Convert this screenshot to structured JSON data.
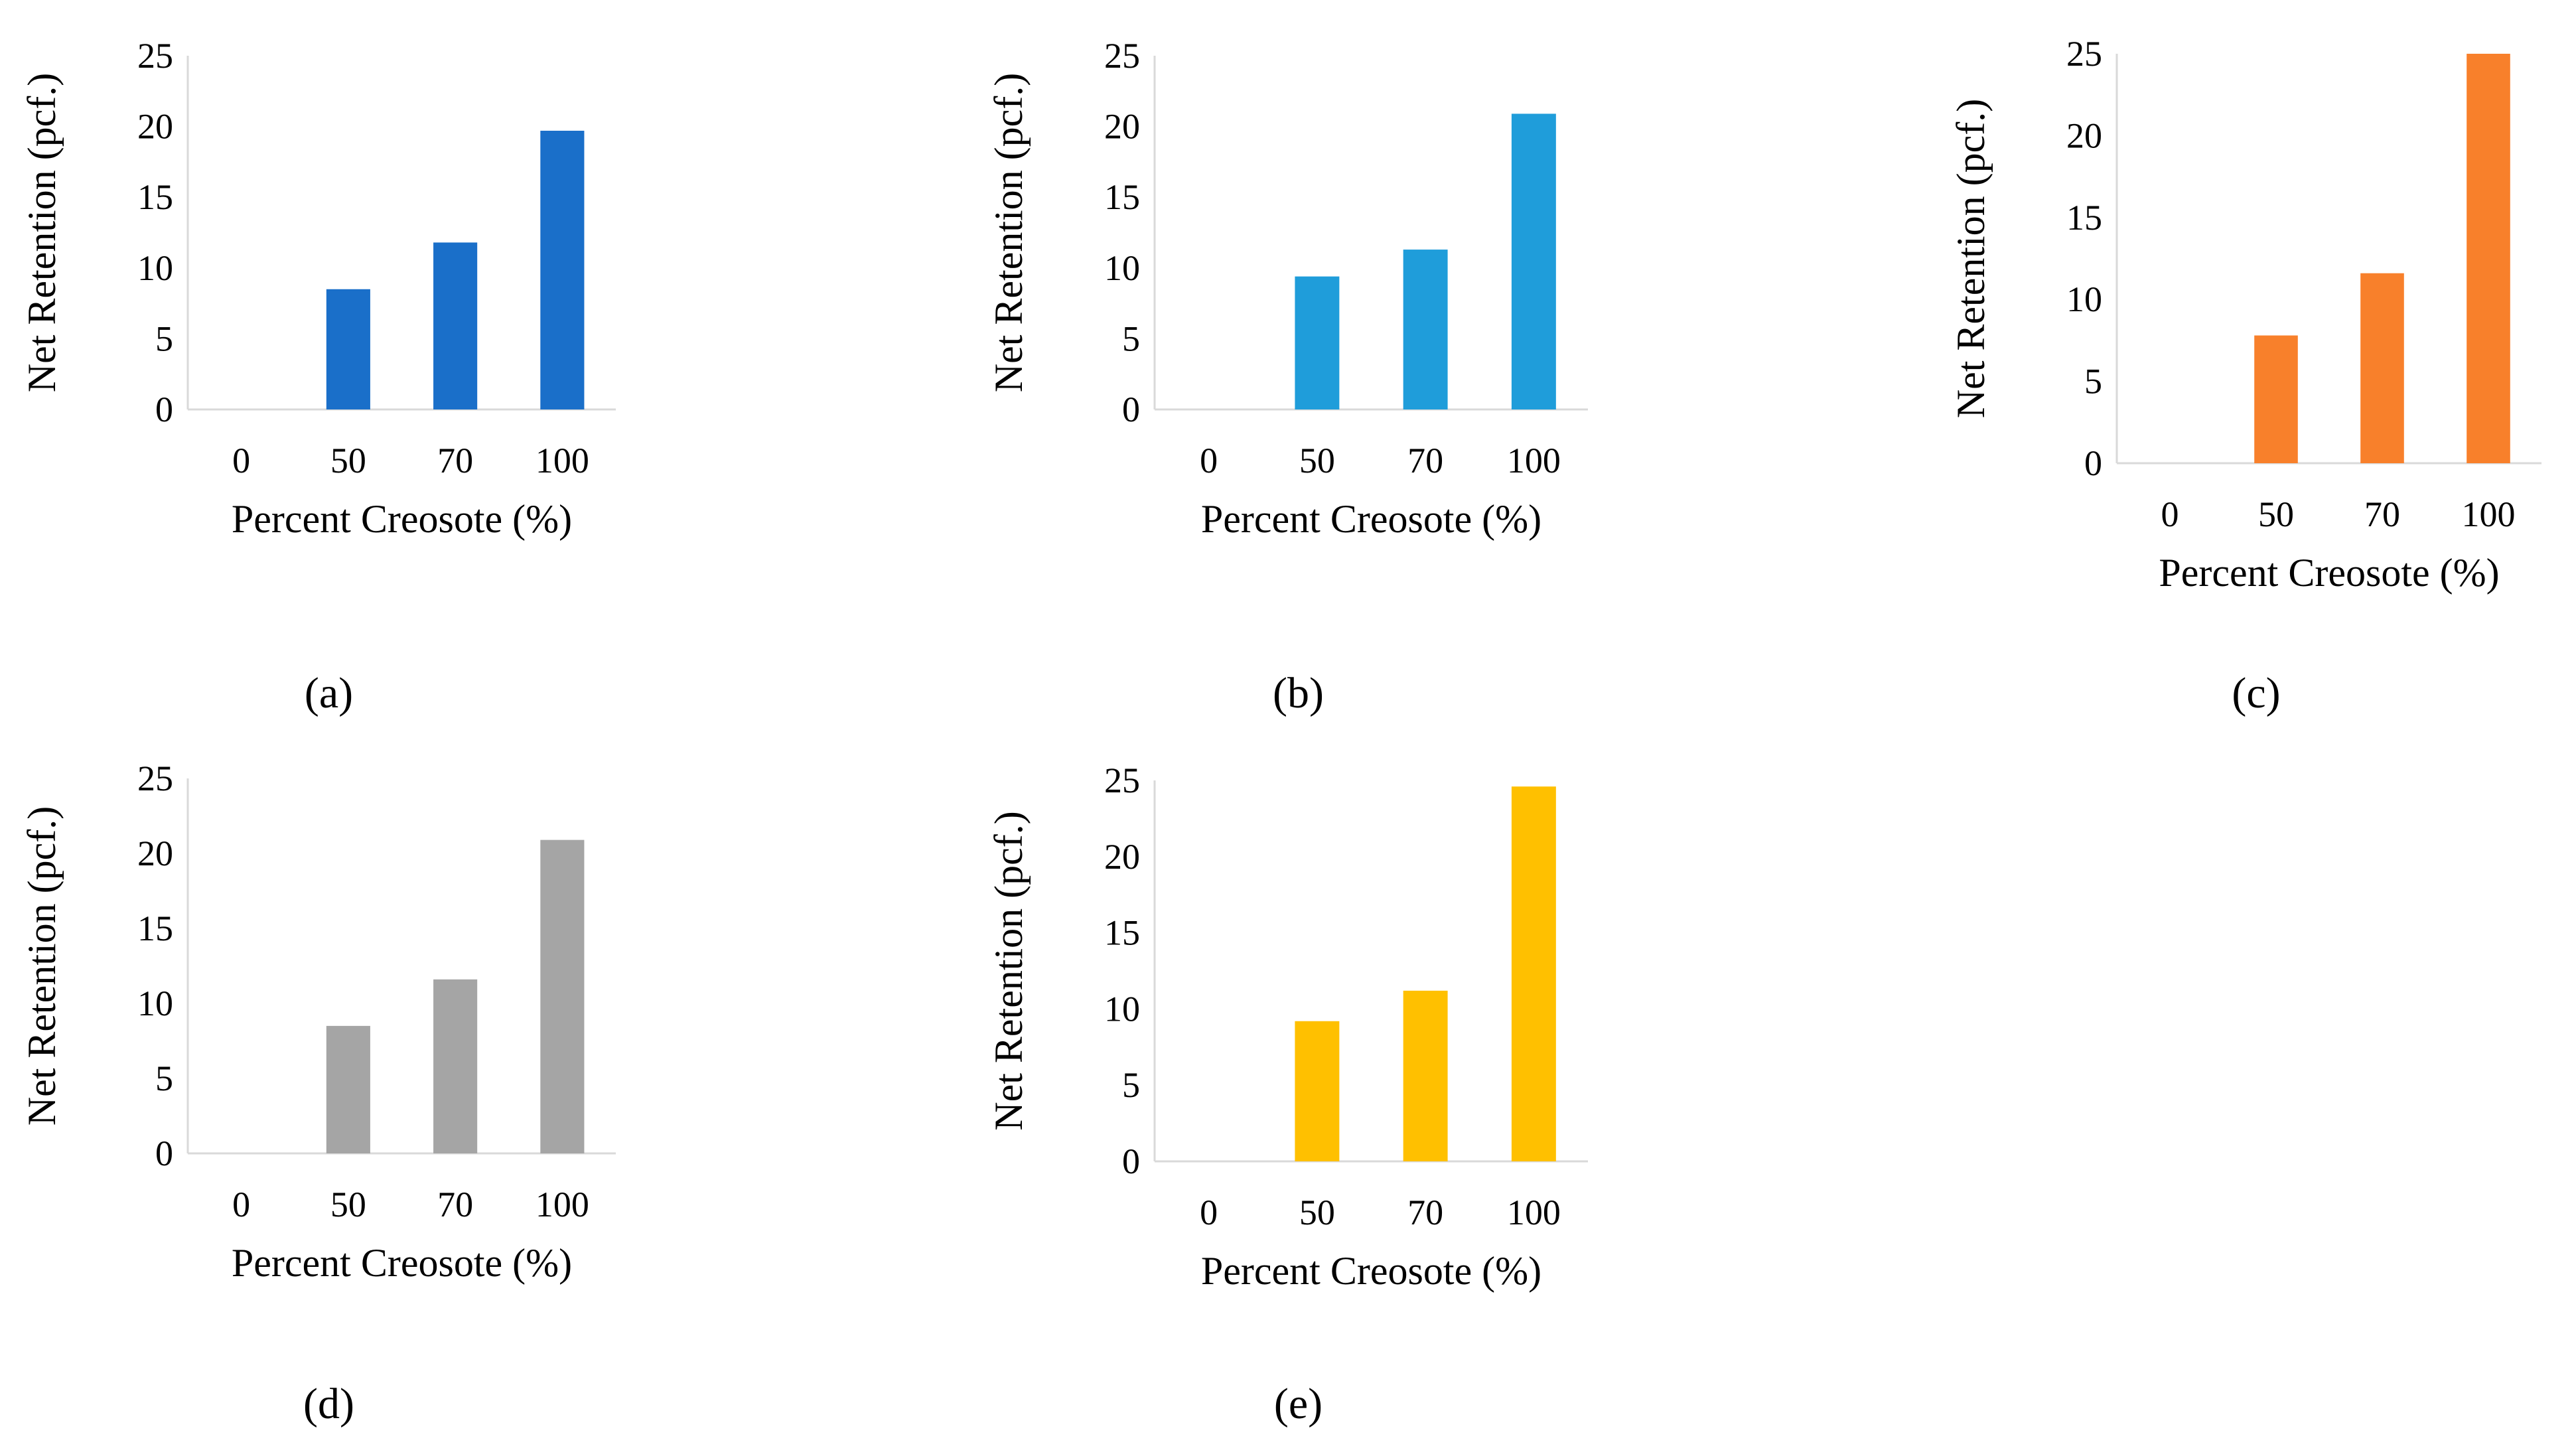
{
  "chart_data": [
    {
      "type": "bar",
      "panel_label": "(a)",
      "categories": [
        "0",
        "50",
        "70",
        "100"
      ],
      "values": [
        0,
        8.5,
        11.8,
        19.7
      ],
      "color": "#1A6FC9",
      "xlabel": "Percent Creosote (%)",
      "ylabel": "Net Retention (pcf.)",
      "ylim": [
        0,
        25
      ],
      "yticks": [
        "0",
        "5",
        "10",
        "15",
        "20",
        "25"
      ],
      "grid": false,
      "legend": "none"
    },
    {
      "type": "bar",
      "panel_label": "(b)",
      "categories": [
        "0",
        "50",
        "70",
        "100"
      ],
      "values": [
        0,
        9.4,
        11.3,
        20.9
      ],
      "color": "#1F9DDA",
      "xlabel": "Percent Creosote (%)",
      "ylabel": "Net Retention (pcf.)",
      "ylim": [
        0,
        25
      ],
      "yticks": [
        "0",
        "5",
        "10",
        "15",
        "20",
        "25"
      ],
      "grid": false,
      "legend": "none"
    },
    {
      "type": "bar",
      "panel_label": "(c)",
      "categories": [
        "0",
        "50",
        "70",
        "100"
      ],
      "values": [
        0,
        7.8,
        11.6,
        25.0
      ],
      "color": "#F8802B",
      "xlabel": "Percent Creosote (%)",
      "ylabel": "Net Retention (pcf.)",
      "ylim": [
        0,
        25
      ],
      "yticks": [
        "0",
        "5",
        "10",
        "15",
        "20",
        "25"
      ],
      "grid": false,
      "legend": "none"
    },
    {
      "type": "bar",
      "panel_label": "(d)",
      "categories": [
        "0",
        "50",
        "70",
        "100"
      ],
      "values": [
        0,
        8.5,
        11.6,
        20.9
      ],
      "color": "#A5A5A5",
      "xlabel": "Percent Creosote (%)",
      "ylabel": "Net Retention (pcf.)",
      "ylim": [
        0,
        25
      ],
      "yticks": [
        "0",
        "5",
        "10",
        "15",
        "20",
        "25"
      ],
      "grid": false,
      "legend": "none"
    },
    {
      "type": "bar",
      "panel_label": "(e)",
      "categories": [
        "0",
        "50",
        "70",
        "100"
      ],
      "values": [
        0,
        9.2,
        11.2,
        24.6
      ],
      "color": "#FFC000",
      "xlabel": "Percent Creosote (%)",
      "ylabel": "Net Retention (pcf.)",
      "ylim": [
        0,
        25
      ],
      "yticks": [
        "0",
        "5",
        "10",
        "15",
        "20",
        "25"
      ],
      "grid": false,
      "legend": "none"
    }
  ]
}
